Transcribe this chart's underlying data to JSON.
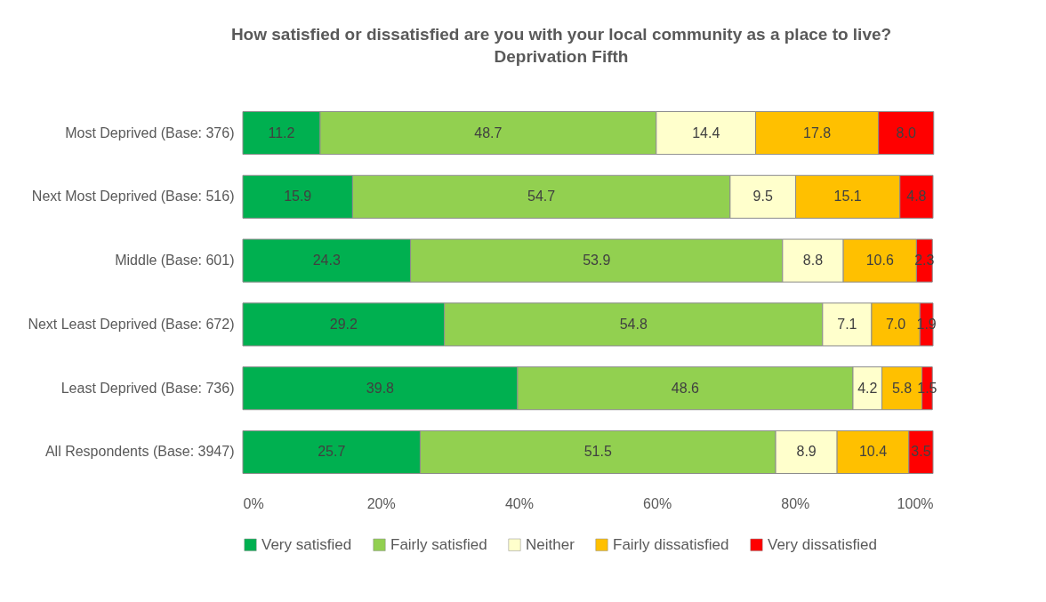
{
  "chart_data": {
    "type": "bar",
    "orientation": "horizontal",
    "stacked": true,
    "title": "How satisfied or dissatisfied are you with your local community as a place to live?",
    "subtitle": "Deprivation Fifth",
    "categories": [
      "Most Deprived (Base: 376)",
      "Next Most Deprived (Base: 516)",
      "Middle (Base: 601)",
      "Next Least Deprived (Base: 672)",
      "Least Deprived (Base: 736)",
      "All Respondents (Base: 3947)"
    ],
    "series": [
      {
        "name": "Very satisfied",
        "color": "#00b050",
        "values": [
          11.2,
          15.9,
          24.3,
          29.2,
          39.8,
          25.7
        ],
        "value_labels": [
          "11.2",
          "15.9",
          "24.3",
          "29.2",
          "39.8",
          "25.7"
        ]
      },
      {
        "name": "Fairly satisfied",
        "color": "#92d050",
        "values": [
          48.7,
          54.7,
          53.9,
          54.8,
          48.6,
          51.5
        ],
        "value_labels": [
          "48.7",
          "54.7",
          "53.9",
          "54.8",
          "48.6",
          "51.5"
        ]
      },
      {
        "name": "Neither",
        "color": "#ffffcc",
        "values": [
          14.4,
          9.5,
          8.8,
          7.1,
          4.2,
          8.9
        ],
        "value_labels": [
          "14.4",
          "9.5",
          "8.8",
          "7.1",
          "4.2",
          "8.9"
        ]
      },
      {
        "name": "Fairly dissatisfied",
        "color": "#ffc000",
        "values": [
          17.8,
          15.1,
          10.6,
          7.0,
          5.8,
          10.4
        ],
        "value_labels": [
          "17.8",
          "15.1",
          "10.6",
          "7.0",
          "5.8",
          "10.4"
        ]
      },
      {
        "name": "Very dissatisfied",
        "color": "#ff0000",
        "values": [
          8.0,
          4.8,
          2.3,
          1.9,
          1.5,
          3.5
        ],
        "value_labels": [
          "8.0",
          "4.8",
          "2.3",
          "1.9",
          "1.5",
          "3.5"
        ]
      }
    ],
    "xlim": [
      0,
      100
    ],
    "xticks": [
      {
        "value": 0,
        "label": "0%"
      },
      {
        "value": 20,
        "label": "20%"
      },
      {
        "value": 40,
        "label": "40%"
      },
      {
        "value": 60,
        "label": "60%"
      },
      {
        "value": 80,
        "label": "80%"
      },
      {
        "value": 100,
        "label": "100%"
      }
    ],
    "legend": "bottom",
    "grid": false
  }
}
